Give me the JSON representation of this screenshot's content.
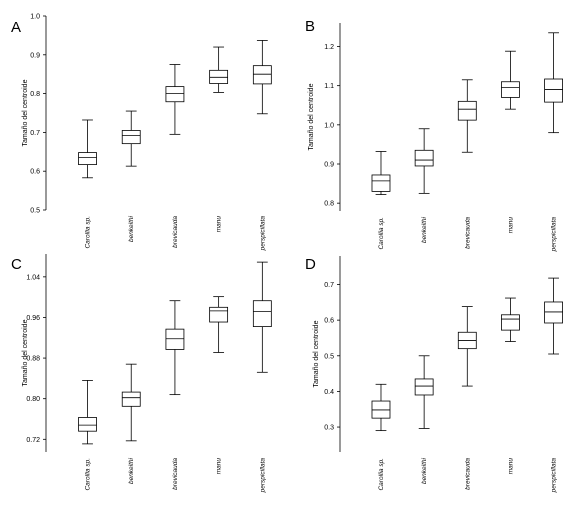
{
  "chart_data": [
    {
      "type": "box",
      "panel": "A",
      "ylabel": "Tamaño del centroide",
      "ylim": [
        0.5,
        1.0
      ],
      "yticks": [
        "0.5",
        "0.6",
        "0.7",
        "0.8",
        "0.9",
        "1.0"
      ],
      "categories": [
        "Carollia sp.",
        "benkeithi",
        "brevicauda",
        "manu",
        "perspicillata"
      ],
      "boxes": [
        {
          "min": 0.583,
          "q1": 0.617,
          "median": 0.635,
          "q3": 0.648,
          "max": 0.732
        },
        {
          "min": 0.613,
          "q1": 0.671,
          "median": 0.692,
          "q3": 0.705,
          "max": 0.755
        },
        {
          "min": 0.695,
          "q1": 0.779,
          "median": 0.8,
          "q3": 0.818,
          "max": 0.875
        },
        {
          "min": 0.803,
          "q1": 0.826,
          "median": 0.842,
          "q3": 0.86,
          "max": 0.92
        },
        {
          "min": 0.748,
          "q1": 0.825,
          "median": 0.85,
          "q3": 0.872,
          "max": 0.937
        }
      ]
    },
    {
      "type": "box",
      "panel": "B",
      "ylabel": "Tamaño del centroide",
      "ylim": [
        0.78,
        1.26
      ],
      "yticks": [
        "0.8",
        "0.9",
        "1.0",
        "1.1",
        "1.2"
      ],
      "categories": [
        "Carollia sp.",
        "benkeithi",
        "brevicauda",
        "manu",
        "perspicillata"
      ],
      "boxes": [
        {
          "min": 0.822,
          "q1": 0.83,
          "median": 0.857,
          "q3": 0.872,
          "max": 0.932
        },
        {
          "min": 0.825,
          "q1": 0.895,
          "median": 0.91,
          "q3": 0.935,
          "max": 0.99
        },
        {
          "min": 0.93,
          "q1": 1.012,
          "median": 1.04,
          "q3": 1.06,
          "max": 1.115
        },
        {
          "min": 1.04,
          "q1": 1.07,
          "median": 1.095,
          "q3": 1.11,
          "max": 1.188
        },
        {
          "min": 0.98,
          "q1": 1.058,
          "median": 1.09,
          "q3": 1.117,
          "max": 1.235
        }
      ]
    },
    {
      "type": "box",
      "panel": "C",
      "ylabel": "Tamaño del centroide",
      "ylim": [
        0.695,
        1.085
      ],
      "yticks": [
        "0.72",
        "0.80",
        "0.88",
        "0.96",
        "1.04"
      ],
      "categories": [
        "Carollia sp.",
        "benkeithi",
        "brevicauda",
        "manu",
        "perspicillata"
      ],
      "boxes": [
        {
          "min": 0.711,
          "q1": 0.736,
          "median": 0.748,
          "q3": 0.763,
          "max": 0.836
        },
        {
          "min": 0.717,
          "q1": 0.785,
          "median": 0.802,
          "q3": 0.813,
          "max": 0.868
        },
        {
          "min": 0.808,
          "q1": 0.897,
          "median": 0.918,
          "q3": 0.937,
          "max": 0.993
        },
        {
          "min": 0.891,
          "q1": 0.951,
          "median": 0.973,
          "q3": 0.98,
          "max": 1.001
        },
        {
          "min": 0.852,
          "q1": 0.942,
          "median": 0.972,
          "q3": 0.993,
          "max": 1.069
        }
      ]
    },
    {
      "type": "box",
      "panel": "D",
      "ylabel": "Tamaño del centroide",
      "ylim": [
        0.23,
        0.78
      ],
      "yticks": [
        "0.3",
        "0.4",
        "0.5",
        "0.6",
        "0.7"
      ],
      "categories": [
        "Carollia sp.",
        "benkeithi",
        "brevicauda",
        "manu",
        "perspicillata"
      ],
      "boxes": [
        {
          "min": 0.29,
          "q1": 0.325,
          "median": 0.348,
          "q3": 0.373,
          "max": 0.42
        },
        {
          "min": 0.296,
          "q1": 0.39,
          "median": 0.415,
          "q3": 0.435,
          "max": 0.5
        },
        {
          "min": 0.415,
          "q1": 0.52,
          "median": 0.543,
          "q3": 0.566,
          "max": 0.638
        },
        {
          "min": 0.54,
          "q1": 0.572,
          "median": 0.603,
          "q3": 0.615,
          "max": 0.662
        },
        {
          "min": 0.505,
          "q1": 0.592,
          "median": 0.623,
          "q3": 0.651,
          "max": 0.718
        }
      ]
    }
  ]
}
